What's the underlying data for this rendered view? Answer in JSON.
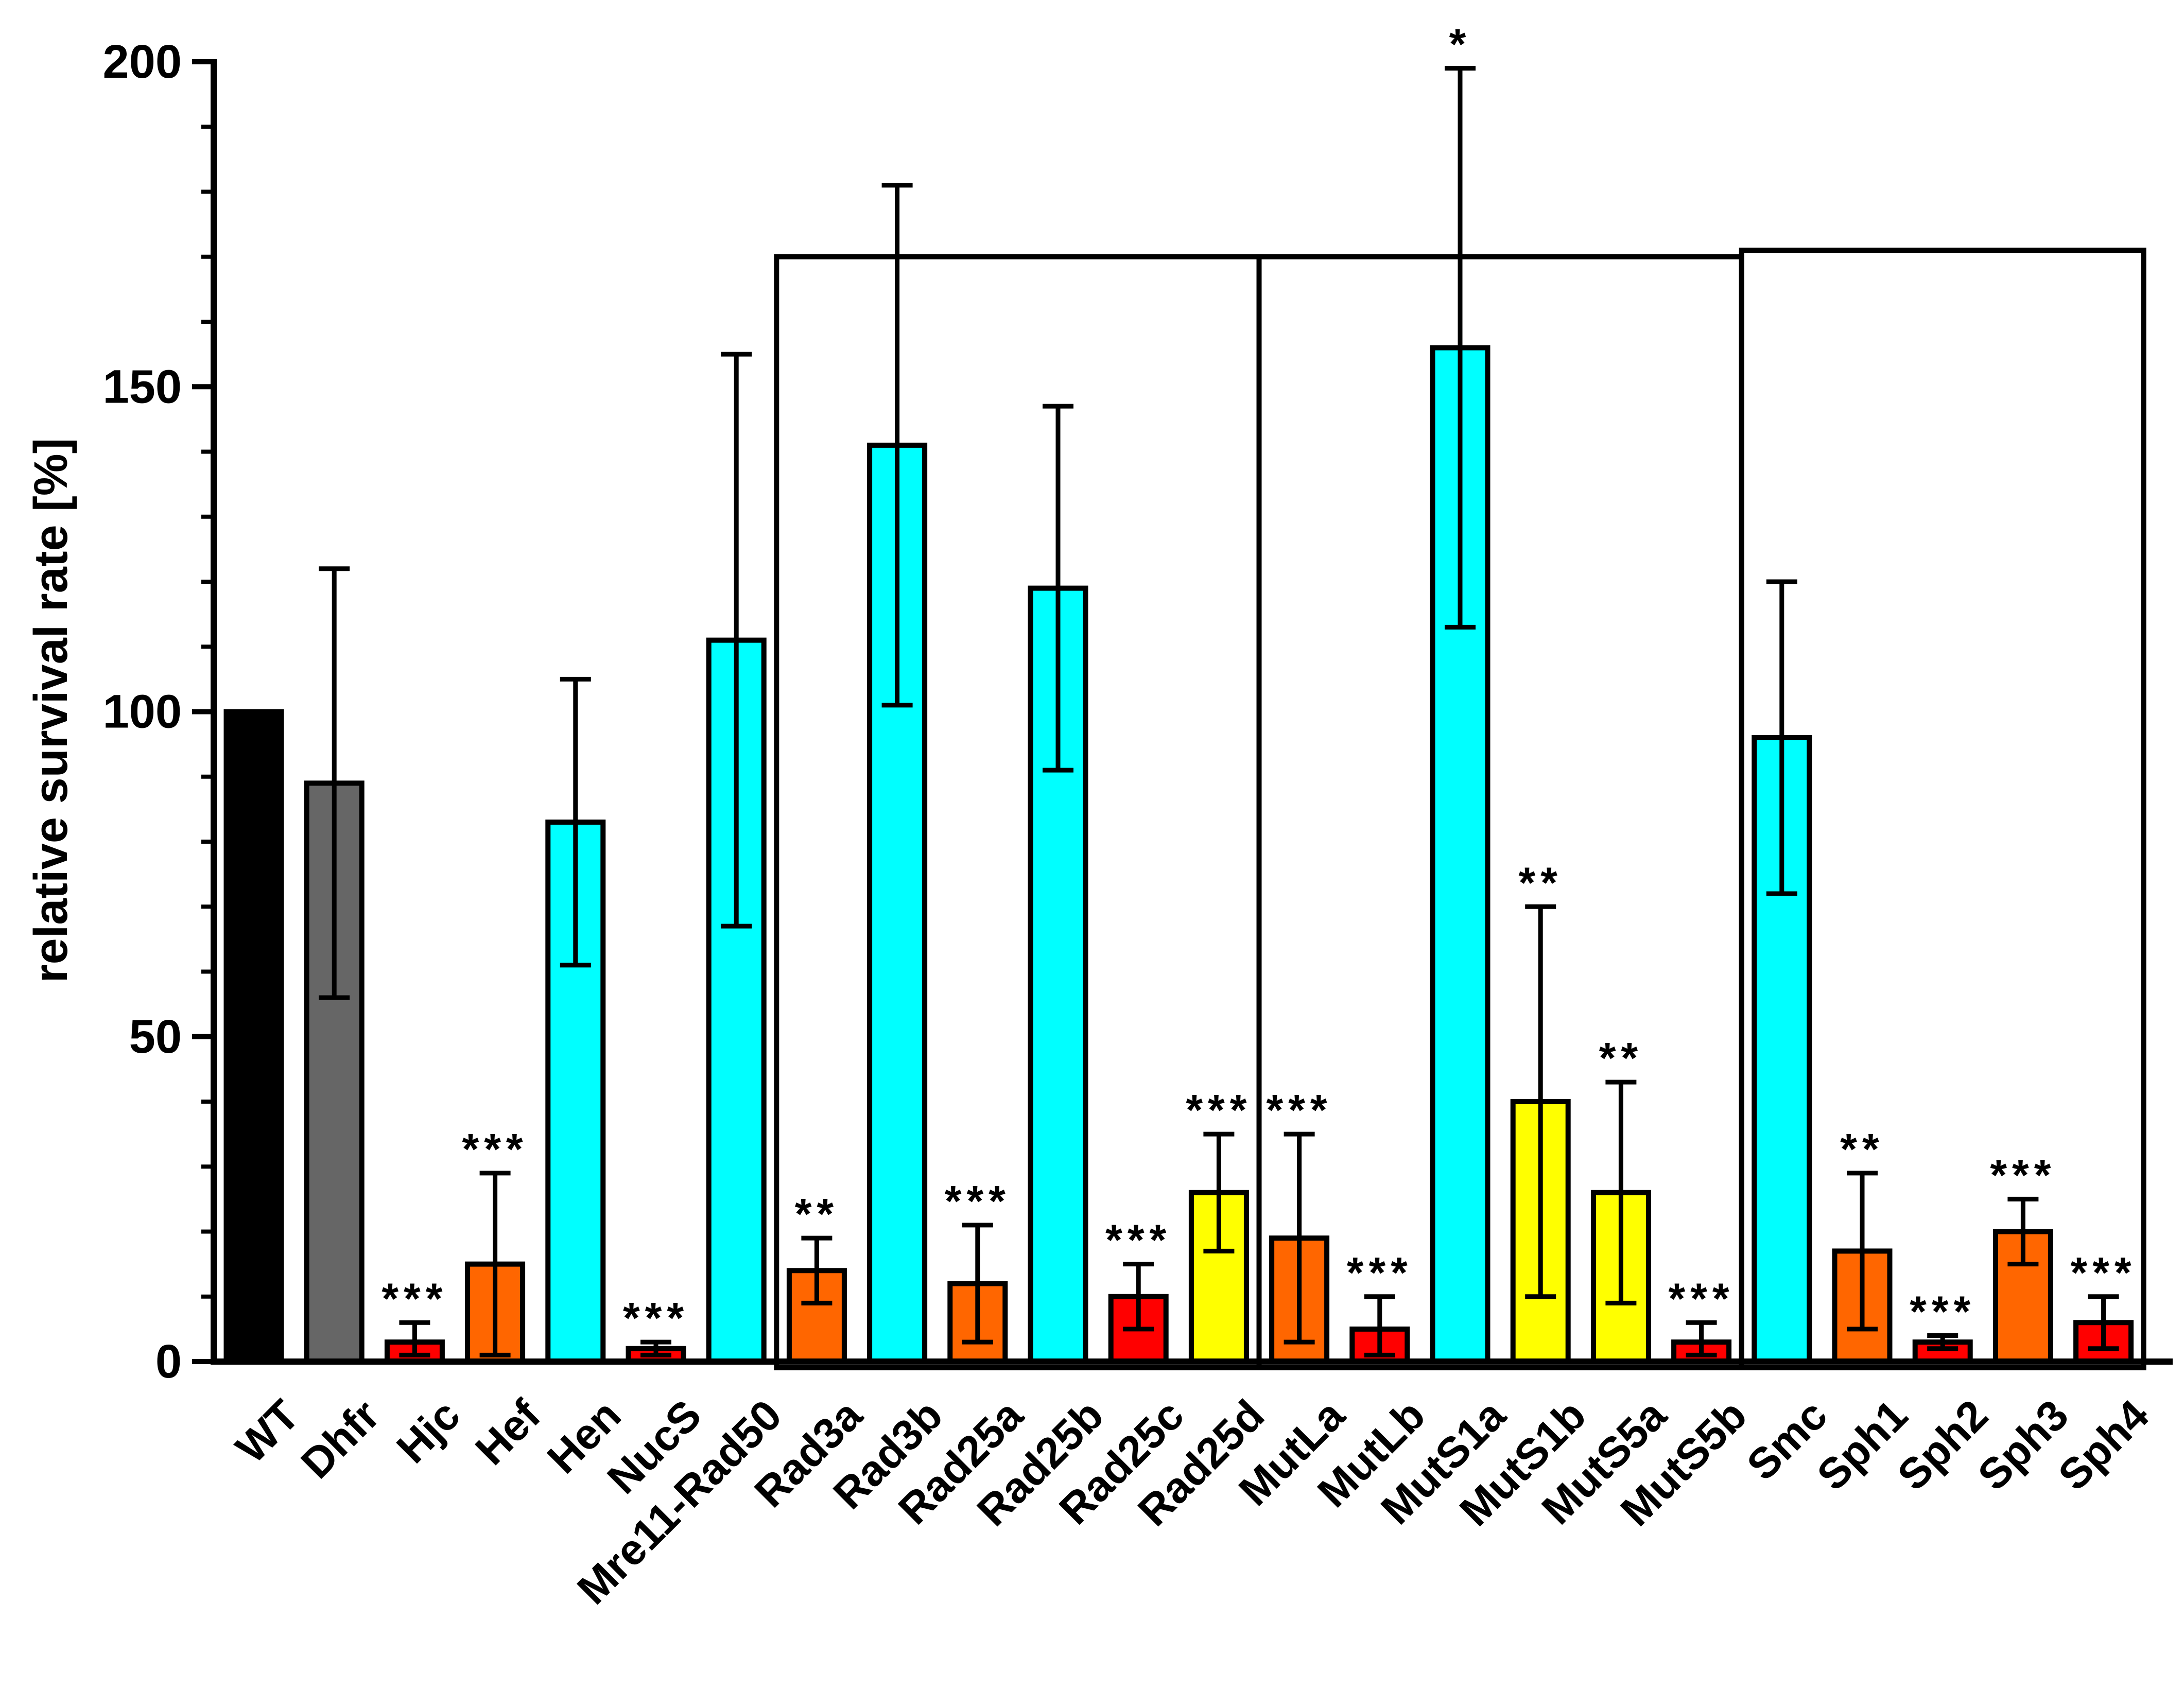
{
  "chart_data": {
    "type": "bar",
    "title": "",
    "xlabel": "",
    "ylabel": "relative survival rate [%]",
    "ylim": [
      0,
      200
    ],
    "yticks": [
      0,
      50,
      100,
      150,
      200
    ],
    "grid": false,
    "legend": "none",
    "categories": [
      "WT",
      "Dhfr",
      "Hjc",
      "Hef",
      "Hen",
      "NucS",
      "Mre11-Rad50",
      "Rad3a",
      "Rad3b",
      "Rad25a",
      "Rad25b",
      "Rad25c",
      "Rad25d",
      "MutLa",
      "MutLb",
      "MutS1a",
      "MutS1b",
      "MutS5a",
      "MutS5b",
      "Smc",
      "Sph1",
      "Sph2",
      "Sph3",
      "Sph4"
    ],
    "values": [
      100,
      89,
      3,
      15,
      83,
      2,
      111,
      14,
      141,
      12,
      119,
      10,
      26,
      19,
      5,
      156,
      40,
      26,
      3,
      96,
      17,
      3,
      20,
      6
    ],
    "error_low": [
      100,
      56,
      1,
      1,
      61,
      1,
      67,
      9,
      101,
      3,
      91,
      5,
      17,
      3,
      1,
      113,
      10,
      9,
      1,
      72,
      5,
      2,
      15,
      2
    ],
    "error_high": [
      100,
      122,
      6,
      29,
      105,
      3,
      155,
      19,
      181,
      21,
      147,
      15,
      35,
      35,
      10,
      199,
      70,
      43,
      6,
      120,
      29,
      4,
      25,
      10
    ],
    "significance": [
      "",
      "",
      "***",
      "***",
      "",
      "***",
      "",
      "**",
      "",
      "***",
      "",
      "***",
      "***",
      "***",
      "***",
      "*",
      "**",
      "**",
      "***",
      "",
      "**",
      "***",
      "***",
      "***"
    ],
    "colors": [
      "#000000",
      "#666666",
      "#ff0000",
      "#ff6600",
      "#00ffff",
      "#ff0000",
      "#00ffff",
      "#ff6600",
      "#00ffff",
      "#ff6600",
      "#00ffff",
      "#ff0000",
      "#ffff00",
      "#ff6600",
      "#ff0000",
      "#00ffff",
      "#ffff00",
      "#ffff00",
      "#ff0000",
      "#00ffff",
      "#ff6600",
      "#ff0000",
      "#ff6600",
      "#ff0000"
    ],
    "group_boxes": [
      {
        "from": "Rad3a",
        "to": "Rad25d",
        "top": 170
      },
      {
        "from": "MutLa",
        "to": "MutS5b",
        "top": 170
      },
      {
        "from": "Smc",
        "to": "Sph4",
        "top": 171
      }
    ]
  }
}
